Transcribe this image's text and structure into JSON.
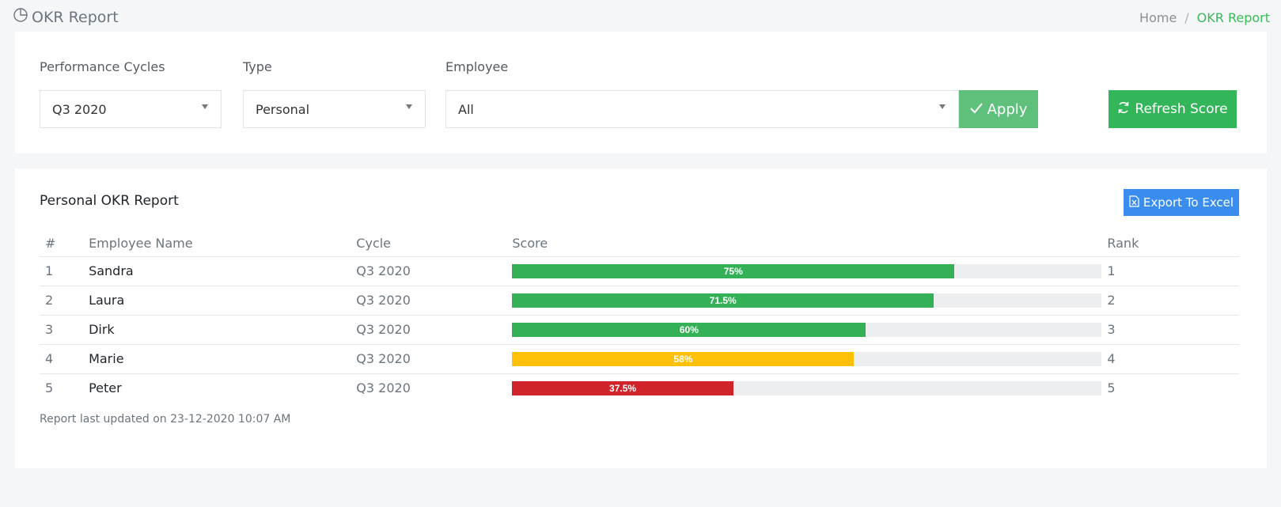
{
  "header": {
    "title": "OKR Report",
    "breadcrumb": [
      {
        "label": "Home"
      },
      {
        "label": "OKR Report"
      }
    ]
  },
  "filters": {
    "cycle": {
      "label": "Performance Cycles",
      "value": "Q3 2020"
    },
    "type": {
      "label": "Type",
      "value": "Personal"
    },
    "employee": {
      "label": "Employee",
      "value": "All"
    },
    "apply_label": "Apply",
    "refresh_label": "Refresh Score"
  },
  "report": {
    "title": "Personal OKR Report",
    "export_label": "Export To Excel",
    "columns": [
      "#",
      "Employee Name",
      "Cycle",
      "Score",
      "Rank"
    ],
    "rows": [
      {
        "num": "1",
        "name": "Sandra",
        "cycle": "Q3 2020",
        "score": 75,
        "score_label": "75%",
        "color": "#34b157",
        "rank": "1"
      },
      {
        "num": "2",
        "name": "Laura",
        "cycle": "Q3 2020",
        "score": 71.5,
        "score_label": "71.5%",
        "color": "#34b157",
        "rank": "2"
      },
      {
        "num": "3",
        "name": "Dirk",
        "cycle": "Q3 2020",
        "score": 60,
        "score_label": "60%",
        "color": "#34b157",
        "rank": "3"
      },
      {
        "num": "4",
        "name": "Marie",
        "cycle": "Q3 2020",
        "score": 58,
        "score_label": "58%",
        "color": "#ffc107",
        "rank": "4"
      },
      {
        "num": "5",
        "name": "Peter",
        "cycle": "Q3 2020",
        "score": 37.5,
        "score_label": "37.5%",
        "color": "#d0232a",
        "rank": "5"
      }
    ],
    "updated_text": "Report last updated on 23-12-2020 10:07 AM"
  },
  "icons": {
    "title_icon": "pie-chart-icon",
    "apply_icon": "check-icon",
    "refresh_icon": "refresh-icon",
    "export_icon": "excel-file-icon"
  }
}
